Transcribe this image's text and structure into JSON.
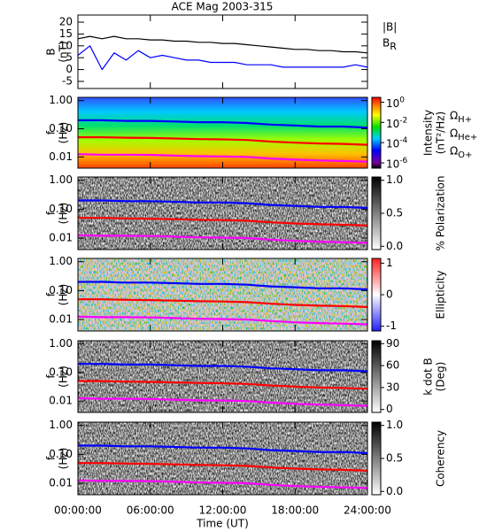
{
  "chart_data": [
    {
      "type": "line",
      "title": "ACE Mag 2003-315",
      "ylabel": [
        "B",
        "(nT)"
      ],
      "xlim": [
        0,
        24
      ],
      "ylim": [
        -8,
        23
      ],
      "yticks": [
        -5,
        0,
        5,
        10,
        15,
        20
      ],
      "x": [
        0,
        1,
        2,
        3,
        4,
        5,
        6,
        7,
        8,
        9,
        10,
        11,
        12,
        13,
        14,
        15,
        16,
        17,
        18,
        19,
        20,
        21,
        22,
        23,
        24
      ],
      "series": [
        {
          "name": "|B|",
          "color": "#000000",
          "values": [
            13,
            14,
            13,
            14,
            13,
            13,
            12.5,
            12.5,
            12,
            12,
            11.5,
            11.5,
            11,
            11,
            10.5,
            10,
            9.5,
            9,
            8.5,
            8.5,
            8,
            8,
            7.5,
            7.5,
            7
          ]
        },
        {
          "name": "B",
          "subscript": "R",
          "color": "#0000ff",
          "values": [
            6,
            10,
            0,
            7,
            4,
            8,
            5,
            6,
            5,
            4,
            4,
            3,
            3,
            3,
            2,
            2,
            2,
            1,
            1,
            1,
            1,
            1,
            1,
            2,
            1
          ]
        }
      ]
    },
    {
      "type": "spectrogram",
      "ylabel": [
        "f",
        "(Hz)"
      ],
      "log_y": true,
      "xlim": [
        0,
        24
      ],
      "ylim": [
        0.004,
        1.3
      ],
      "yticks": [
        {
          "value": 1,
          "label": "1.00"
        },
        {
          "value": 0.1,
          "label": "0.10"
        },
        {
          "value": 0.01,
          "label": "0.01"
        }
      ],
      "colorbar": {
        "label": [
          "Intensity",
          "(nT²/Hz)"
        ],
        "colormap": "rainbow",
        "log": true,
        "lim": [
          3e-07,
          3
        ],
        "ticks": [
          {
            "value": 1,
            "label": "10",
            "exponent": "0"
          },
          {
            "value": 0.01,
            "label": "10",
            "exponent": "-2"
          },
          {
            "value": 0.0001,
            "label": "10",
            "exponent": "-4"
          },
          {
            "value": 1e-06,
            "label": "10",
            "exponent": "-6"
          }
        ]
      },
      "x": [
        0,
        2,
        4,
        6,
        8,
        10,
        12,
        14,
        16,
        18,
        20,
        22,
        24
      ],
      "series": [
        {
          "name": "Ω",
          "subscript": "H+",
          "color": "#0000ff",
          "values": [
            0.2,
            0.2,
            0.19,
            0.19,
            0.18,
            0.17,
            0.17,
            0.16,
            0.14,
            0.13,
            0.12,
            0.12,
            0.11
          ]
        },
        {
          "name": "Ω",
          "subscript": "He+",
          "color": "#ff0000",
          "values": [
            0.05,
            0.05,
            0.048,
            0.047,
            0.045,
            0.043,
            0.042,
            0.04,
            0.035,
            0.032,
            0.03,
            0.029,
            0.027
          ]
        },
        {
          "name": "Ω",
          "subscript": "O+",
          "color": "#ff00ff",
          "values": [
            0.0125,
            0.012,
            0.012,
            0.0118,
            0.0112,
            0.0106,
            0.0104,
            0.01,
            0.0088,
            0.008,
            0.0075,
            0.0072,
            0.0068
          ]
        }
      ]
    },
    {
      "type": "spectrogram",
      "ylabel": [
        "f",
        "(Hz)"
      ],
      "log_y": true,
      "xlim": [
        0,
        24
      ],
      "ylim": [
        0.004,
        1.3
      ],
      "yticks": [
        {
          "value": 1,
          "label": "1.00"
        },
        {
          "value": 0.1,
          "label": "0.10"
        },
        {
          "value": 0.01,
          "label": "0.01"
        }
      ],
      "colorbar": {
        "label": [
          "% Polarization"
        ],
        "colormap": "gray",
        "lim": [
          -0.05,
          1.05
        ],
        "ticks": [
          {
            "value": 1,
            "label": "1.0"
          },
          {
            "value": 0.5,
            "label": "0.5"
          },
          {
            "value": 0,
            "label": "0.0"
          }
        ]
      }
    },
    {
      "type": "spectrogram",
      "ylabel": [
        "f",
        "(Hz)"
      ],
      "log_y": true,
      "xlim": [
        0,
        24
      ],
      "ylim": [
        0.004,
        1.3
      ],
      "yticks": [
        {
          "value": 1,
          "label": "1.00"
        },
        {
          "value": 0.1,
          "label": "0.10"
        },
        {
          "value": 0.01,
          "label": "0.01"
        }
      ],
      "colorbar": {
        "label": [
          "Ellipticity"
        ],
        "colormap": "bwr",
        "lim": [
          -1.15,
          1.15
        ],
        "ticks": [
          1,
          0,
          -1
        ]
      }
    },
    {
      "type": "spectrogram",
      "ylabel": [
        "f",
        "(Hz)"
      ],
      "log_y": true,
      "xlim": [
        0,
        24
      ],
      "ylim": [
        0.004,
        1.3
      ],
      "yticks": [
        {
          "value": 1,
          "label": "1.00"
        },
        {
          "value": 0.1,
          "label": "0.10"
        },
        {
          "value": 0.01,
          "label": "0.01"
        }
      ],
      "colorbar": {
        "label": [
          "k dot B",
          "(Deg)"
        ],
        "colormap": "gray",
        "lim": [
          -4,
          94
        ],
        "ticks": [
          90,
          60,
          30,
          0
        ]
      }
    },
    {
      "type": "spectrogram",
      "ylabel": [
        "f",
        "(Hz)"
      ],
      "log_y": true,
      "xlim": [
        0,
        24
      ],
      "ylim": [
        0.004,
        1.3
      ],
      "yticks": [
        {
          "value": 1,
          "label": "1.00"
        },
        {
          "value": 0.1,
          "label": "0.10"
        },
        {
          "value": 0.01,
          "label": "0.01"
        }
      ],
      "colorbar": {
        "label": [
          "Coherency"
        ],
        "colormap": "gray",
        "lim": [
          -0.05,
          1.05
        ],
        "ticks": [
          {
            "value": 1,
            "label": "1.0"
          },
          {
            "value": 0.5,
            "label": "0.5"
          },
          {
            "value": 0,
            "label": "0.0"
          }
        ]
      },
      "xlabel": "Time (UT)",
      "xticks": [
        {
          "value": 0,
          "label": "00:00:00"
        },
        {
          "value": 6,
          "label": "06:00:00"
        },
        {
          "value": 12,
          "label": "12:00:00"
        },
        {
          "value": 18,
          "label": "18:00:00"
        },
        {
          "value": 24,
          "label": "24:00:00"
        }
      ]
    }
  ]
}
